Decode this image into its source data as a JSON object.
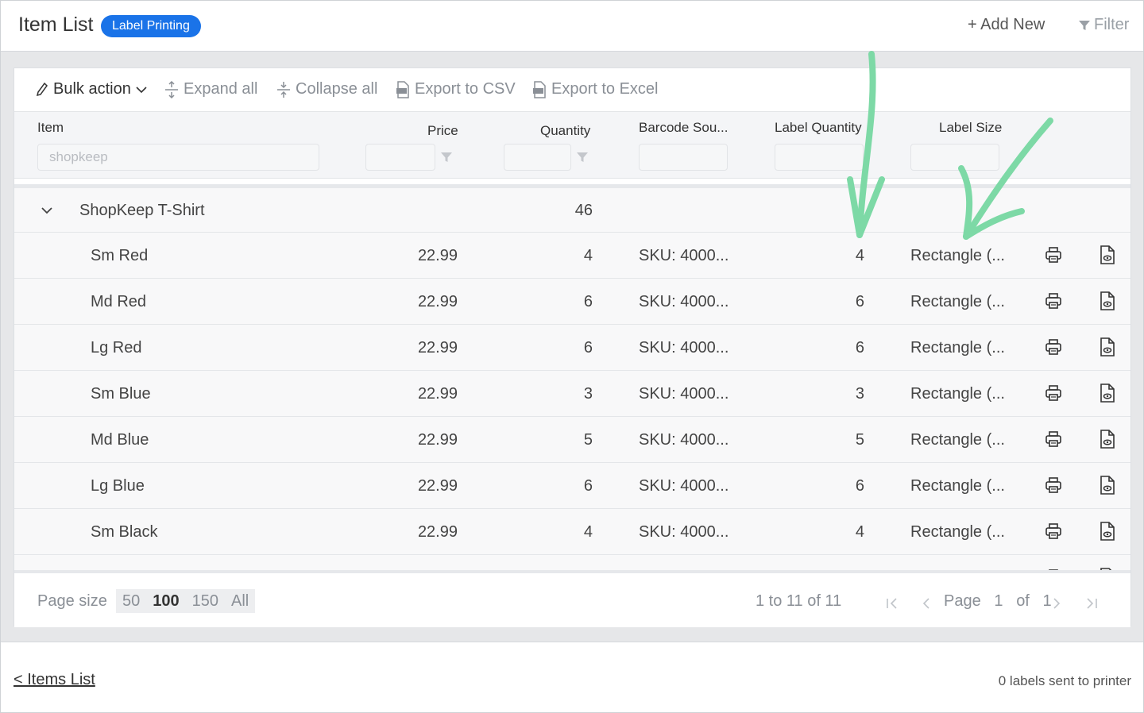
{
  "header": {
    "title": "Item List",
    "badge": "Label Printing",
    "add_new": "+ Add New",
    "filter": "Filter"
  },
  "toolbar": {
    "bulk_action": "Bulk action",
    "expand_all": "Expand all",
    "collapse_all": "Collapse all",
    "export_csv": "Export to CSV",
    "export_excel": "Export to Excel"
  },
  "columns": {
    "item": "Item",
    "price": "Price",
    "quantity": "Quantity",
    "barcode_source": "Barcode Sou...",
    "label_quantity": "Label Quantity",
    "label_size": "Label Size",
    "item_filter_value": "shopkeep"
  },
  "group": {
    "name": "ShopKeep T-Shirt",
    "quantity": "46"
  },
  "rows": [
    {
      "name": "Sm Red",
      "price": "22.99",
      "quantity": "4",
      "barcode": "SKU: 4000...",
      "label_qty": "4",
      "label_size": "Rectangle (..."
    },
    {
      "name": "Md Red",
      "price": "22.99",
      "quantity": "6",
      "barcode": "SKU: 4000...",
      "label_qty": "6",
      "label_size": "Rectangle (..."
    },
    {
      "name": "Lg Red",
      "price": "22.99",
      "quantity": "6",
      "barcode": "SKU: 4000...",
      "label_qty": "6",
      "label_size": "Rectangle (..."
    },
    {
      "name": "Sm Blue",
      "price": "22.99",
      "quantity": "3",
      "barcode": "SKU: 4000...",
      "label_qty": "3",
      "label_size": "Rectangle (..."
    },
    {
      "name": "Md Blue",
      "price": "22.99",
      "quantity": "5",
      "barcode": "SKU: 4000...",
      "label_qty": "5",
      "label_size": "Rectangle (..."
    },
    {
      "name": "Lg Blue",
      "price": "22.99",
      "quantity": "6",
      "barcode": "SKU: 4000...",
      "label_qty": "6",
      "label_size": "Rectangle (..."
    },
    {
      "name": "Sm Black",
      "price": "22.99",
      "quantity": "4",
      "barcode": "SKU: 4000...",
      "label_qty": "4",
      "label_size": "Rectangle (..."
    }
  ],
  "pager": {
    "page_size_label": "Page size",
    "options": [
      "50",
      "100",
      "150",
      "All"
    ],
    "selected": "100",
    "range": "1 to 11 of 11",
    "page_word": "Page",
    "page_current": "1",
    "of_word": "of",
    "page_total": "1"
  },
  "bottom": {
    "back_link": "< Items List",
    "status": "0 labels sent to printer"
  },
  "colors": {
    "accent": "#1a73e8",
    "annotation_arrow": "#7dd9a6"
  },
  "icons": [
    "pencil-icon",
    "chevron-down-icon",
    "expand-icon",
    "collapse-icon",
    "csv-file-icon",
    "excel-file-icon",
    "filter-funnel-icon",
    "printer-icon",
    "file-preview-icon"
  ]
}
